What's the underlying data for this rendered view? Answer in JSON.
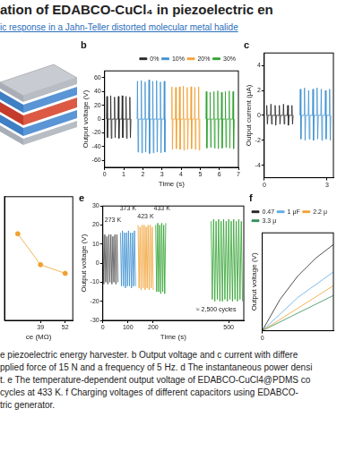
{
  "title": "ation of EDABCO-CuCl₄ in piezoelectric en",
  "subtitle": "ic response in a Jahn-Teller distorted molecular metal halide",
  "chart_data": [
    {
      "type": "line",
      "title": "b",
      "xlabel": "Time (s)",
      "ylabel": "Output voltage (V)",
      "xlim": [
        0,
        7
      ],
      "xticks": [
        0,
        1,
        2,
        3,
        4,
        5,
        6,
        7
      ],
      "ylim": [
        -70,
        70
      ],
      "yticks": [
        -60,
        -40,
        -20,
        0,
        20,
        40,
        60
      ],
      "grid": false,
      "legend": "upper right",
      "series": [
        {
          "name": "0%",
          "color": "#222222",
          "x": [
            0.1,
            0.12,
            0.15,
            0.18,
            0.3,
            0.32,
            0.35,
            0.38,
            0.5,
            0.52,
            0.55,
            0.58,
            0.7,
            0.72,
            0.75,
            0.78,
            0.9,
            0.92,
            0.95,
            0.98,
            1.1,
            1.12,
            1.15,
            1.18,
            1.3,
            1.32,
            1.35,
            1.38
          ],
          "values": [
            0,
            33,
            -27,
            0,
            0,
            34,
            -28,
            0,
            0,
            32,
            -27,
            0,
            0,
            33,
            -28,
            0,
            0,
            34,
            -27,
            0,
            0,
            33,
            -28,
            0,
            0,
            32,
            -27,
            0
          ]
        },
        {
          "name": "10%",
          "color": "#3b8fd1",
          "x": [
            1.7,
            1.72,
            1.75,
            1.78,
            1.9,
            1.92,
            1.95,
            1.98,
            2.1,
            2.12,
            2.15,
            2.18,
            2.3,
            2.32,
            2.35,
            2.38,
            2.5,
            2.52,
            2.55,
            2.58,
            2.7,
            2.72,
            2.75,
            2.78,
            2.9,
            2.92,
            2.95,
            2.98,
            3.1,
            3.12,
            3.15,
            3.18
          ],
          "values": [
            0,
            55,
            -48,
            0,
            0,
            56,
            -49,
            0,
            0,
            54,
            -48,
            0,
            0,
            57,
            -50,
            0,
            0,
            55,
            -49,
            0,
            0,
            56,
            -48,
            0,
            0,
            54,
            -49,
            0,
            0,
            55,
            -48,
            0
          ]
        },
        {
          "name": "20%",
          "color": "#f0a030",
          "x": [
            3.5,
            3.52,
            3.55,
            3.58,
            3.7,
            3.72,
            3.75,
            3.78,
            3.9,
            3.92,
            3.95,
            3.98,
            4.1,
            4.12,
            4.15,
            4.18,
            4.3,
            4.32,
            4.35,
            4.38,
            4.5,
            4.52,
            4.55,
            4.58,
            4.7,
            4.72,
            4.75,
            4.78,
            4.9,
            4.92,
            4.95,
            4.98
          ],
          "values": [
            0,
            47,
            -44,
            0,
            0,
            46,
            -43,
            0,
            0,
            47,
            -44,
            0,
            0,
            48,
            -45,
            0,
            0,
            46,
            -44,
            0,
            0,
            47,
            -43,
            0,
            0,
            46,
            -44,
            0,
            0,
            47,
            -45,
            0
          ]
        },
        {
          "name": "30%",
          "color": "#2ca02c",
          "x": [
            5.3,
            5.32,
            5.35,
            5.38,
            5.5,
            5.52,
            5.55,
            5.58,
            5.7,
            5.72,
            5.75,
            5.78,
            5.9,
            5.92,
            5.95,
            5.98,
            6.1,
            6.12,
            6.15,
            6.18,
            6.3,
            6.32,
            6.35,
            6.38,
            6.5,
            6.52,
            6.55,
            6.58,
            6.7,
            6.72,
            6.75,
            6.78
          ],
          "values": [
            0,
            40,
            -42,
            0,
            0,
            39,
            -41,
            0,
            0,
            40,
            -42,
            0,
            0,
            41,
            -43,
            0,
            0,
            39,
            -42,
            0,
            0,
            40,
            -41,
            0,
            0,
            41,
            -42,
            0,
            0,
            40,
            -43,
            0
          ]
        }
      ]
    },
    {
      "type": "line",
      "title": "c",
      "ylabel": "Output current (μA)",
      "xlim": [
        0,
        3.3
      ],
      "xticks": [
        0,
        3
      ],
      "ylim": [
        -5,
        5
      ],
      "yticks": [
        -4,
        -2,
        0,
        2,
        4
      ],
      "grid": false,
      "series": [
        {
          "color": "#222222",
          "x": [
            0.1,
            0.12,
            0.15,
            0.18,
            0.3,
            0.32,
            0.35,
            0.38,
            0.5,
            0.52,
            0.55,
            0.58,
            0.7,
            0.72,
            0.75,
            0.78,
            0.9,
            0.92,
            0.95,
            0.98,
            1.1,
            1.12,
            1.15,
            1.18,
            1.3,
            1.32,
            1.35,
            1.38
          ],
          "values": [
            0,
            0.8,
            -0.7,
            0,
            0,
            0.9,
            -0.7,
            0,
            0,
            0.8,
            -0.8,
            0,
            0,
            0.8,
            -0.7,
            0,
            0,
            0.9,
            -0.7,
            0,
            0,
            0.8,
            -0.8,
            0,
            0,
            0.8,
            -0.7,
            0
          ]
        },
        {
          "color": "#3b8fd1",
          "x": [
            1.7,
            1.72,
            1.75,
            1.78,
            1.9,
            1.92,
            1.95,
            1.98,
            2.1,
            2.12,
            2.15,
            2.18,
            2.3,
            2.32,
            2.35,
            2.38,
            2.5,
            2.52,
            2.55,
            2.58,
            2.7,
            2.72,
            2.75,
            2.78,
            2.9,
            2.92,
            2.95,
            2.98,
            3.1,
            3.12,
            3.15,
            3.18
          ],
          "values": [
            0,
            2.1,
            -1.9,
            0,
            0,
            2.2,
            -2.0,
            0,
            0,
            2.0,
            -1.9,
            0,
            0,
            2.1,
            -2.0,
            0,
            0,
            2.2,
            -1.9,
            0,
            0,
            2.1,
            -2.0,
            0,
            0,
            2.0,
            -1.9,
            0,
            0,
            2.1,
            -2.0,
            0
          ]
        }
      ]
    },
    {
      "type": "line",
      "xlabel": "ce (MΩ)",
      "xlim": [
        20,
        56
      ],
      "xticks": [
        39,
        52
      ],
      "ylim": [
        0,
        10
      ],
      "grid": false,
      "tick_labels": "x",
      "series": [
        {
          "color": "#f0a030",
          "marker": "circle",
          "x": [
            27,
            39,
            52
          ],
          "values": [
            7,
            4.5,
            3.8
          ]
        }
      ]
    },
    {
      "type": "line",
      "title": "e",
      "xlabel": "Time (s)",
      "ylabel": "Output voltage (V)",
      "xlim": [
        0,
        560
      ],
      "xticks": [
        0,
        100,
        200,
        500
      ],
      "ylim": [
        -30,
        30
      ],
      "yticks": [
        -30,
        -20,
        -10,
        0,
        10,
        20,
        30
      ],
      "grid": false,
      "annotations": [
        {
          "text": "273 K",
          "x": 40,
          "y": 21
        },
        {
          "text": "373 K",
          "x": 100,
          "y": 27
        },
        {
          "text": "423 K",
          "x": 170,
          "y": 23
        },
        {
          "text": "433 K",
          "x": 235,
          "y": 27
        },
        {
          "text": "≈ 2,500 cycles",
          "x": 450,
          "y": -26
        }
      ],
      "series": [
        {
          "color": "#4a4a4a",
          "x": [
            0,
            4,
            8,
            12,
            16,
            20,
            24,
            28,
            32,
            36,
            40,
            44,
            48,
            52,
            56,
            60
          ],
          "values": [
            15,
            -11,
            15,
            -10,
            14,
            -11,
            15,
            -10,
            15,
            -11,
            14,
            -10,
            15,
            -11,
            15,
            -10
          ]
        },
        {
          "color": "#3b8fd1",
          "x": [
            70,
            74,
            78,
            82,
            86,
            90,
            94,
            98,
            102,
            106,
            110,
            114,
            118,
            122,
            126,
            130
          ],
          "values": [
            16,
            -12,
            17,
            -12,
            16,
            -13,
            16,
            -12,
            17,
            -12,
            16,
            -13,
            16,
            -12,
            17,
            -12
          ]
        },
        {
          "color": "#f0a030",
          "x": [
            140,
            144,
            148,
            152,
            156,
            160,
            164,
            168,
            172,
            176,
            180,
            184,
            188,
            192,
            196,
            200
          ],
          "values": [
            20,
            -13,
            19,
            -14,
            20,
            -13,
            20,
            -14,
            19,
            -13,
            20,
            -14,
            20,
            -13,
            19,
            -14
          ]
        },
        {
          "color": "#2ca02c",
          "x": [
            210,
            214,
            218,
            222,
            226,
            230,
            234,
            238,
            242,
            246,
            250,
            340,
            430,
            435,
            440,
            445,
            450,
            455,
            460,
            465,
            470,
            475,
            480,
            485,
            490,
            495,
            500,
            505,
            510,
            515,
            520,
            525,
            530,
            535,
            540,
            545,
            550,
            555
          ],
          "values": [
            20,
            -15,
            21,
            -15,
            20,
            -16,
            21,
            -15,
            20,
            -16,
            21,
            null,
            22,
            -19,
            23,
            -20,
            22,
            -19,
            23,
            -20,
            22,
            -20,
            23,
            -19,
            22,
            -20,
            23,
            -19,
            22,
            -20,
            23,
            -19,
            22,
            -20,
            23,
            -19,
            22,
            -20
          ]
        }
      ]
    },
    {
      "type": "line",
      "title": "f",
      "ylabel": "Output voltage (V)",
      "xlim": [
        0,
        20
      ],
      "xticks": [
        0
      ],
      "ylim": [
        0,
        5
      ],
      "grid": false,
      "tick_labels": "x",
      "legend": "upper left",
      "series": [
        {
          "name": "0.47",
          "color": "#222222",
          "x": [
            0,
            5,
            10,
            15,
            20
          ],
          "values": [
            0,
            1.6,
            2.8,
            3.7,
            4.4
          ]
        },
        {
          "name": "1 μF",
          "color": "#5aa9e6",
          "x": [
            0,
            10,
            20
          ],
          "values": [
            0,
            1.7,
            3.0
          ]
        },
        {
          "name": "2.2 μ",
          "color": "#f0a030",
          "x": [
            0,
            20
          ],
          "values": [
            0,
            2.3
          ]
        },
        {
          "name": "3.3 μ",
          "color": "#2e8b57",
          "x": [
            0,
            20
          ],
          "values": [
            0,
            1.8
          ]
        }
      ]
    }
  ],
  "caption": [
    "e piezoelectric energy harvester. b Output voltage and c current with differe",
    "pplied force of 15 N and a frequency of 5 Hz. d The instantaneous power densi",
    "t. e The temperature-dependent output voltage of EDABCO-CuCl4@PDMS co",
    "cycles at 433 K. f Charging voltages of different capacitors using EDABCO-",
    "tric generator."
  ]
}
